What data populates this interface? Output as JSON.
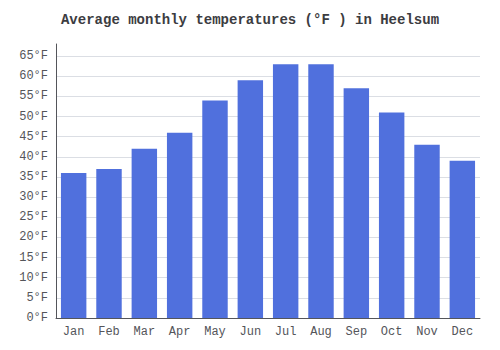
{
  "chart_data": {
    "type": "bar",
    "title": "Average monthly temperatures (°F ) in Heelsum",
    "categories": [
      "Jan",
      "Feb",
      "Mar",
      "Apr",
      "May",
      "Jun",
      "Jul",
      "Aug",
      "Sep",
      "Oct",
      "Nov",
      "Dec"
    ],
    "values": [
      36,
      37,
      42,
      46,
      54,
      59,
      63,
      63,
      57,
      51,
      43,
      39
    ],
    "ylim": [
      0,
      68
    ],
    "yticks": [
      {
        "value": 0,
        "label": "0°F"
      },
      {
        "value": 5,
        "label": "5°F"
      },
      {
        "value": 10,
        "label": "10°F"
      },
      {
        "value": 15,
        "label": "15°F"
      },
      {
        "value": 20,
        "label": "20°F"
      },
      {
        "value": 25,
        "label": "25°F"
      },
      {
        "value": 30,
        "label": "30°F"
      },
      {
        "value": 35,
        "label": "35°F"
      },
      {
        "value": 40,
        "label": "40°F"
      },
      {
        "value": 45,
        "label": "45°F"
      },
      {
        "value": 50,
        "label": "50°F"
      },
      {
        "value": 55,
        "label": "55°F"
      },
      {
        "value": 60,
        "label": "60°F"
      },
      {
        "value": 65,
        "label": "65°F"
      }
    ],
    "grid": true
  }
}
